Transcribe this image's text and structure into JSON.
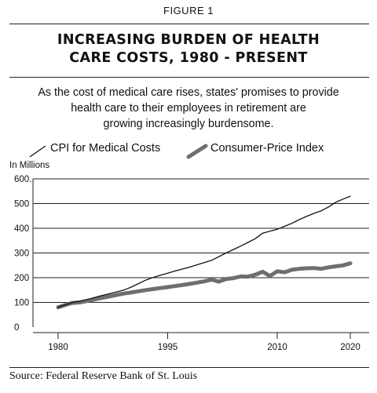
{
  "figure_label": "FIGURE 1",
  "title_line1": "INCREASING BURDEN OF HEALTH",
  "title_line2": "CARE COSTS, 1980 - PRESENT",
  "subtitle_line1": "As the cost of medical care rises, states' promises to provide",
  "subtitle_line2": "health care to their employees in retirement are",
  "subtitle_line3": "growing increasingly burdensome.",
  "source": "Source: Federal Reserve Bank of St. Louis",
  "colors": {
    "medical": "#111111",
    "cpi": "#6e6e6e",
    "grid": "#222222"
  },
  "chart_data": {
    "type": "line",
    "title": "INCREASING BURDEN OF HEALTH CARE COSTS, 1980 - PRESENT",
    "ylabel": "In Millions",
    "xlabel": "",
    "xlim": [
      1980,
      2020
    ],
    "ylim": [
      0,
      600
    ],
    "x_ticks": [
      1980,
      1995,
      2010,
      2020
    ],
    "y_ticks": [
      0,
      100,
      200,
      300,
      400,
      500,
      600
    ],
    "grid": "horizontal",
    "legend_position": "top",
    "series": [
      {
        "name": "CPI for Medical Costs",
        "style": "thin",
        "x": [
          1980,
          1981,
          1982,
          1983,
          1984,
          1985,
          1986,
          1987,
          1988,
          1989,
          1990,
          1991,
          1992,
          1993,
          1994,
          1995,
          1996,
          1997,
          1998,
          1999,
          2000,
          2001,
          2002,
          2003,
          2004,
          2005,
          2006,
          2007,
          2008,
          2009,
          2010,
          2011,
          2012,
          2013,
          2014,
          2015,
          2016,
          2017,
          2018,
          2019,
          2020
        ],
        "values": [
          80,
          90,
          100,
          105,
          112,
          120,
          128,
          135,
          142,
          150,
          162,
          176,
          190,
          201,
          210,
          218,
          227,
          235,
          243,
          252,
          261,
          270,
          285,
          300,
          314,
          328,
          343,
          358,
          380,
          388,
          396,
          408,
          420,
          435,
          448,
          460,
          470,
          486,
          505,
          518,
          530
        ]
      },
      {
        "name": "Consumer-Price Index",
        "style": "thick",
        "x": [
          1980,
          1981,
          1982,
          1983,
          1984,
          1985,
          1986,
          1987,
          1988,
          1989,
          1990,
          1991,
          1992,
          1993,
          1994,
          1995,
          1996,
          1997,
          1998,
          1999,
          2000,
          2001,
          2002,
          2003,
          2004,
          2005,
          2006,
          2007,
          2008,
          2009,
          2010,
          2011,
          2012,
          2013,
          2014,
          2015,
          2016,
          2017,
          2018,
          2019,
          2020
        ],
        "values": [
          80,
          90,
          98,
          100,
          106,
          112,
          118,
          124,
          130,
          136,
          140,
          145,
          150,
          154,
          158,
          162,
          166,
          170,
          175,
          180,
          185,
          192,
          184,
          195,
          198,
          205,
          204,
          212,
          224,
          207,
          226,
          222,
          232,
          236,
          238,
          239,
          236,
          242,
          246,
          250,
          258
        ]
      }
    ]
  }
}
